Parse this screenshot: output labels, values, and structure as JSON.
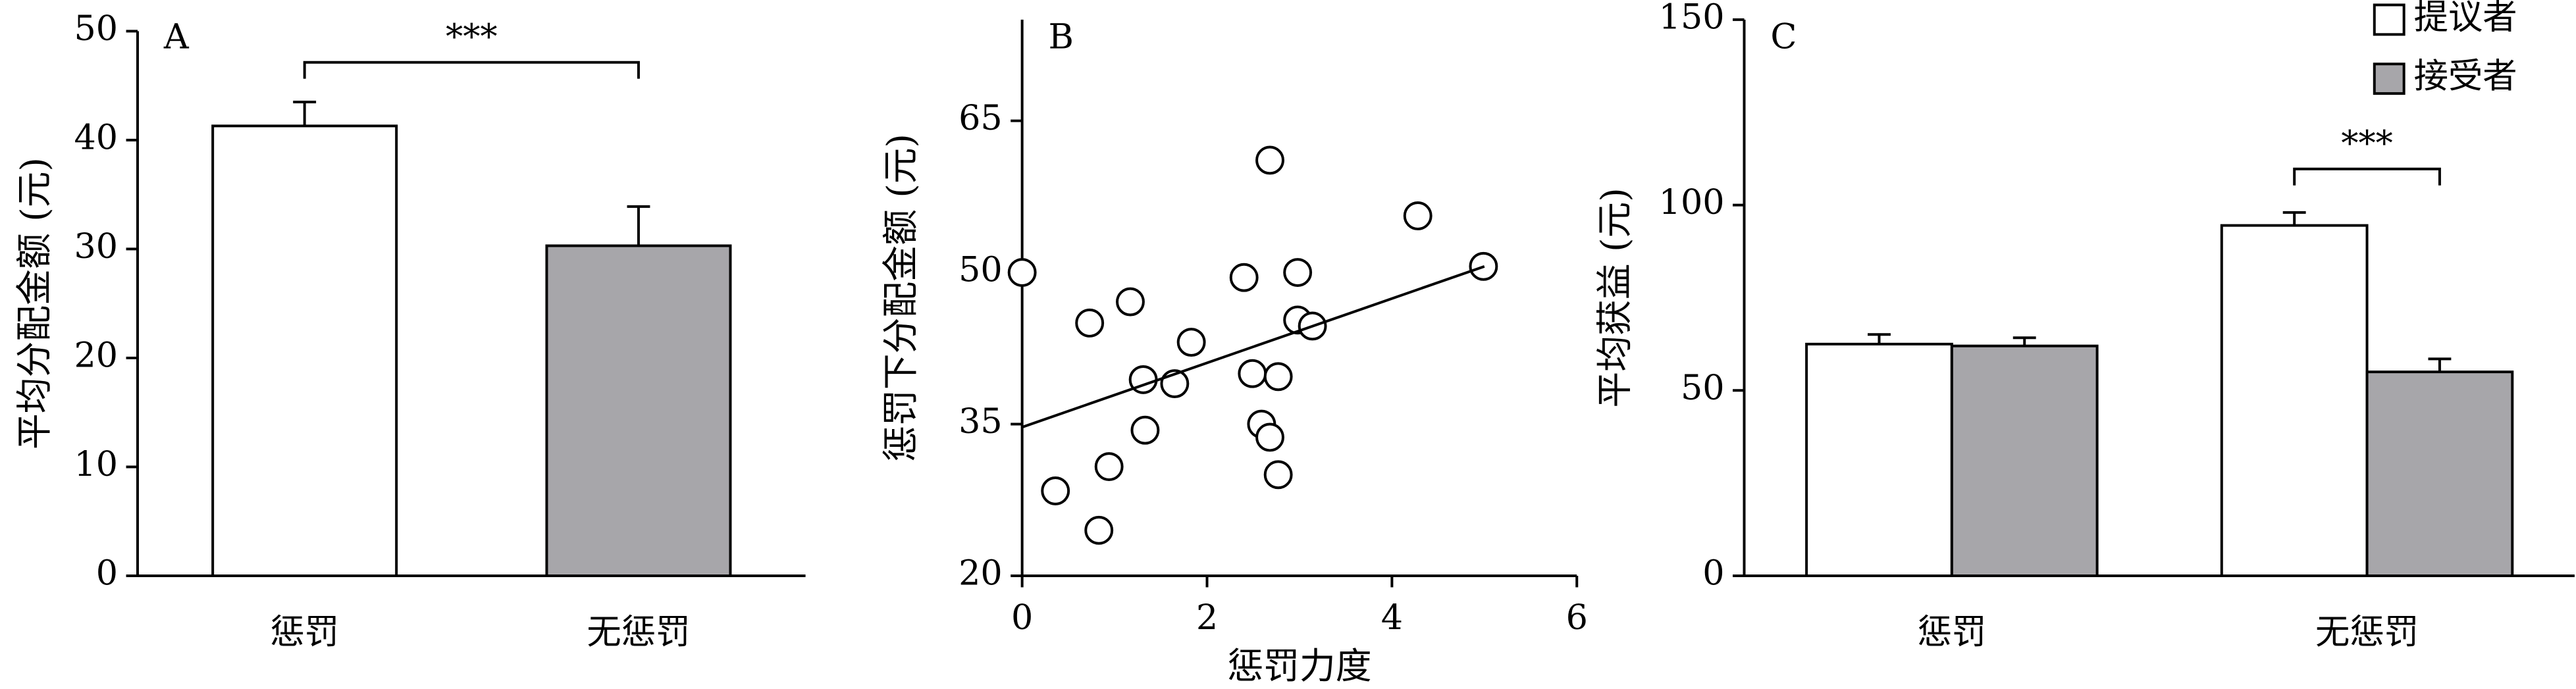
{
  "chart_data": [
    {
      "type": "bar",
      "panel": "A",
      "ylabel": "平均分配金额 (元)",
      "categories": [
        "惩罚",
        "无惩罚"
      ],
      "values": [
        41.3,
        30.3
      ],
      "errors": [
        2.2,
        3.6
      ],
      "colors": [
        "#ffffff",
        "#a7a6aa"
      ],
      "ylim": [
        0,
        50
      ],
      "yticks": [
        0,
        10,
        20,
        30,
        40,
        50
      ],
      "significance": "***"
    },
    {
      "type": "scatter",
      "panel": "B",
      "xlabel": "惩罚力度",
      "ylabel": "惩罚下分配金额 (元)",
      "x": [
        0,
        0.36,
        0.73,
        0.83,
        0.94,
        1.17,
        1.31,
        1.33,
        1.65,
        1.83,
        2.4,
        2.49,
        2.59,
        2.68,
        2.68,
        2.77,
        2.77,
        2.98,
        2.98,
        3.14,
        4.28,
        4.99
      ],
      "y": [
        50,
        28.4,
        45,
        24.5,
        30.8,
        47.1,
        39.4,
        34.4,
        39.0,
        43.1,
        49.5,
        40.0,
        35,
        61.1,
        33.7,
        39.7,
        30.0,
        50,
        45.3,
        44.7,
        55.6,
        50.6
      ],
      "fit_line": {
        "x": [
          0,
          5
        ],
        "y": [
          34.7,
          50.6
        ]
      },
      "xlim": [
        0,
        6
      ],
      "xticks": [
        0,
        2,
        4,
        6
      ],
      "ylim": [
        20,
        75
      ],
      "yticks": [
        20,
        35,
        50,
        65
      ]
    },
    {
      "type": "bar",
      "panel": "C",
      "ylabel": "平均获益 (元)",
      "categories": [
        "惩罚",
        "无惩罚"
      ],
      "series": [
        {
          "name": "提议者",
          "color": "#ffffff",
          "values": [
            62.5,
            94.5
          ],
          "errors": [
            2.6,
            3.5
          ]
        },
        {
          "name": "接受者",
          "color": "#a7a6aa",
          "values": [
            62,
            55
          ],
          "errors": [
            2.2,
            3.5
          ]
        }
      ],
      "ylim": [
        0,
        150
      ],
      "yticks": [
        0,
        50,
        100,
        150
      ],
      "legend": "upper right",
      "significance": "***"
    }
  ]
}
